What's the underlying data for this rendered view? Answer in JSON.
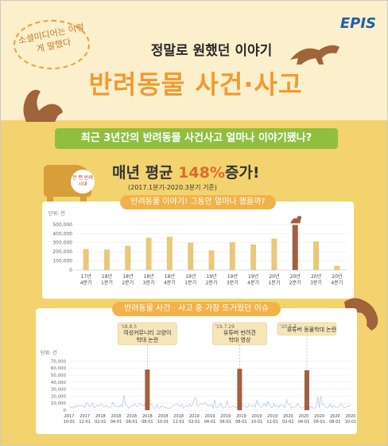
{
  "brand": "EPIS",
  "bubble_text": "소셜미디어는 이렇게 말했다",
  "headline_small": "정말로 원했던 이야기",
  "headline_big": "반려동물 사건·사고",
  "question_banner": "최근 3년간의 반려동물 사건사고 얼마나 이야기됐나?",
  "growth_title_prefix": "매년 평균",
  "growth_title_pct": "148%",
  "growth_title_suffix": "증가!",
  "growth_sub": "(2017.1분기-2020.3분기 기준)",
  "dog_badge": "전 편 반려 시대",
  "colors": {
    "bar": "#eac87a",
    "highlight": "#a35f3e",
    "accent": "#f2b24a",
    "line": "#aec6e3"
  },
  "chart_data": [
    {
      "type": "bar",
      "title": "반려동물 이야기! 그동안 얼마나 했을까?",
      "unit": "단위: 건",
      "categories": [
        "17년 4분기",
        "18년 1분기",
        "18년 2분기",
        "18년 3분기",
        "18년 4분기",
        "19년 1분기",
        "19년 2분기",
        "19년 3분기",
        "19년 4분기",
        "20년 1분기",
        "20년 2분기",
        "20년 3분기",
        "20년 4분기"
      ],
      "category_lines": [
        [
          "17년",
          "4분기"
        ],
        [
          "18년",
          "1분기"
        ],
        [
          "18년",
          "2분기"
        ],
        [
          "18년",
          "3분기"
        ],
        [
          "18년",
          "4분기"
        ],
        [
          "19년",
          "1분기"
        ],
        [
          "19년",
          "2분기"
        ],
        [
          "19년",
          "3분기"
        ],
        [
          "19년",
          "4분기"
        ],
        [
          "20년",
          "1분기"
        ],
        [
          "20년",
          "2분기"
        ],
        [
          "20년",
          "3분기"
        ],
        [
          "20년",
          "4분기"
        ]
      ],
      "values": [
        230000,
        225000,
        265000,
        355000,
        365000,
        300000,
        215000,
        305000,
        280000,
        345000,
        495000,
        315000,
        45000
      ],
      "highlight_index": 10,
      "yticks": [
        0,
        100000,
        200000,
        300000,
        400000,
        500000
      ],
      "ytick_labels": [
        "0",
        "100,000",
        "200,000",
        "300,000",
        "400,000",
        "500,000"
      ],
      "ylim": [
        0,
        560000
      ]
    },
    {
      "type": "line",
      "title": "반려동물 사건 · 사고 중 가장 뜨거웠던 이슈",
      "unit": "단위: 건",
      "yticks": [
        0,
        10000,
        20000,
        30000,
        40000,
        50000,
        60000,
        70000
      ],
      "ytick_labels": [
        "0",
        "10,000",
        "20,000",
        "30,000",
        "40,000",
        "50,000",
        "60,000",
        "70,000"
      ],
      "ylim": [
        0,
        75000
      ],
      "x_labels": [
        [
          "2017",
          "10-01"
        ],
        [
          "2017",
          "12-01"
        ],
        [
          "2018",
          "02-01"
        ],
        [
          "2018",
          "04-01"
        ],
        [
          "2018",
          "06-01"
        ],
        [
          "2018",
          "08-01"
        ],
        [
          "2018",
          "10-01"
        ],
        [
          "2018",
          "12-01"
        ],
        [
          "2019",
          "02-01"
        ],
        [
          "2019",
          "04-01"
        ],
        [
          "2019",
          "06-01"
        ],
        [
          "2019",
          "08-01"
        ],
        [
          "2019",
          "10-01"
        ],
        [
          "2019",
          "12-01"
        ],
        [
          "2020",
          "02-01"
        ],
        [
          "2020",
          "04-01"
        ],
        [
          "2020",
          "06-01"
        ],
        [
          "2020",
          "08-01"
        ],
        [
          "2020",
          "10-01"
        ]
      ],
      "spikes": [
        {
          "position": 5.0,
          "value": 58000,
          "date": "'18.8.5",
          "label": "여성커뮤니티 고양이 학대 논란"
        },
        {
          "position": 10.9,
          "value": 59000,
          "date": "'19.7.29",
          "label": "유튜버 반려견 학대 영상"
        },
        {
          "position": 15.2,
          "value": 57000,
          "date": "'20.5.7",
          "label": "유튜버 동물학대 논란"
        }
      ]
    }
  ]
}
